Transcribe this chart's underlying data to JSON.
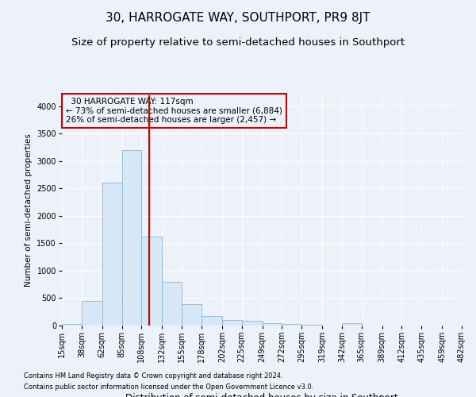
{
  "title": "30, HARROGATE WAY, SOUTHPORT, PR9 8JT",
  "subtitle": "Size of property relative to semi-detached houses in Southport",
  "xlabel": "Distribution of semi-detached houses by size in Southport",
  "ylabel": "Number of semi-detached properties",
  "footnote1": "Contains HM Land Registry data © Crown copyright and database right 2024.",
  "footnote2": "Contains public sector information licensed under the Open Government Licence v3.0.",
  "annotation_title": "30 HARROGATE WAY: 117sqm",
  "annotation_line1": "← 73% of semi-detached houses are smaller (6,884)",
  "annotation_line2": "26% of semi-detached houses are larger (2,457) →",
  "property_size": 117,
  "bar_color": "#d6e8f5",
  "bar_edgecolor": "#8ab8d8",
  "vline_color": "#cc0000",
  "annotation_box_color": "#cc0000",
  "background_color": "#edf2fa",
  "bin_edges": [
    15,
    38,
    62,
    85,
    108,
    132,
    155,
    178,
    202,
    225,
    249,
    272,
    295,
    319,
    342,
    365,
    389,
    412,
    435,
    459,
    482
  ],
  "bin_values": [
    25,
    450,
    2600,
    3200,
    1620,
    800,
    390,
    170,
    100,
    80,
    50,
    30,
    20,
    5,
    40,
    0,
    0,
    0,
    0,
    0
  ],
  "ylim": [
    0,
    4200
  ],
  "yticks": [
    0,
    500,
    1000,
    1500,
    2000,
    2500,
    3000,
    3500,
    4000
  ],
  "title_fontsize": 11,
  "subtitle_fontsize": 9.5,
  "xlabel_fontsize": 8.5,
  "ylabel_fontsize": 7.5,
  "tick_fontsize": 7,
  "annotation_fontsize": 7.5,
  "footnote_fontsize": 6
}
